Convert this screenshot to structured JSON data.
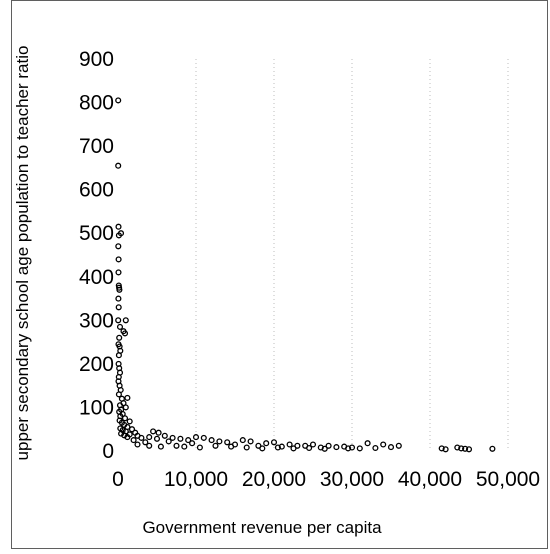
{
  "chart_data": {
    "type": "scatter",
    "title": "",
    "xlabel": "Government revenue per capita",
    "ylabel": "upper secondary school age population to teacher ratio",
    "xlim": [
      0,
      50000
    ],
    "ylim": [
      0,
      900
    ],
    "x_ticks": [
      0,
      10000,
      20000,
      30000,
      40000,
      50000
    ],
    "x_tick_labels": [
      "0",
      "10,000",
      "20,000",
      "30,000",
      "40,000",
      "50,000"
    ],
    "y_ticks": [
      0,
      100,
      200,
      300,
      400,
      500,
      600,
      700,
      800,
      900
    ],
    "y_tick_labels": [
      "0",
      "100",
      "200",
      "300",
      "400",
      "500",
      "600",
      "700",
      "800",
      "900"
    ],
    "grid": {
      "vertical": true,
      "horizontal": false,
      "style": "dotted"
    },
    "marker": {
      "shape": "open-circle",
      "color": "#000000"
    },
    "points": [
      [
        30,
        805
      ],
      [
        30,
        655
      ],
      [
        60,
        515
      ],
      [
        120,
        495
      ],
      [
        380,
        500
      ],
      [
        40,
        470
      ],
      [
        80,
        440
      ],
      [
        60,
        410
      ],
      [
        100,
        380
      ],
      [
        140,
        375
      ],
      [
        180,
        370
      ],
      [
        50,
        350
      ],
      [
        90,
        330
      ],
      [
        30,
        300
      ],
      [
        250,
        285
      ],
      [
        700,
        275
      ],
      [
        900,
        270
      ],
      [
        1000,
        300
      ],
      [
        150,
        260
      ],
      [
        60,
        245
      ],
      [
        200,
        240
      ],
      [
        300,
        230
      ],
      [
        120,
        220
      ],
      [
        80,
        200
      ],
      [
        150,
        190
      ],
      [
        250,
        180
      ],
      [
        100,
        170
      ],
      [
        60,
        160
      ],
      [
        200,
        150
      ],
      [
        350,
        140
      ],
      [
        120,
        130
      ],
      [
        500,
        120
      ],
      [
        1200,
        122
      ],
      [
        700,
        110
      ],
      [
        250,
        105
      ],
      [
        1000,
        100
      ],
      [
        400,
        95
      ],
      [
        150,
        90
      ],
      [
        600,
        85
      ],
      [
        300,
        80
      ],
      [
        900,
        75
      ],
      [
        200,
        70
      ],
      [
        1500,
        68
      ],
      [
        500,
        65
      ],
      [
        800,
        60
      ],
      [
        1200,
        55
      ],
      [
        300,
        52
      ],
      [
        1800,
        50
      ],
      [
        600,
        48
      ],
      [
        1000,
        45
      ],
      [
        2200,
        42
      ],
      [
        400,
        40
      ],
      [
        1500,
        38
      ],
      [
        800,
        36
      ],
      [
        2500,
        35
      ],
      [
        3000,
        30
      ],
      [
        1200,
        32
      ],
      [
        4000,
        32
      ],
      [
        5000,
        28
      ],
      [
        4500,
        45
      ],
      [
        5200,
        42
      ],
      [
        6000,
        35
      ],
      [
        7000,
        30
      ],
      [
        8000,
        28
      ],
      [
        9000,
        25
      ],
      [
        10000,
        32
      ],
      [
        11000,
        30
      ],
      [
        12000,
        25
      ],
      [
        13000,
        22
      ],
      [
        14000,
        20
      ],
      [
        16000,
        25
      ],
      [
        17000,
        22
      ],
      [
        19000,
        18
      ],
      [
        20000,
        20
      ],
      [
        22000,
        15
      ],
      [
        24000,
        12
      ],
      [
        25000,
        15
      ],
      [
        27000,
        12
      ],
      [
        29000,
        10
      ],
      [
        30000,
        8
      ],
      [
        32000,
        18
      ],
      [
        34000,
        15
      ],
      [
        36000,
        12
      ],
      [
        41500,
        6
      ],
      [
        43500,
        8
      ],
      [
        44500,
        5
      ],
      [
        48000,
        5
      ],
      [
        2000,
        25
      ],
      [
        3500,
        20
      ],
      [
        6500,
        22
      ],
      [
        9500,
        18
      ],
      [
        15000,
        15
      ],
      [
        18000,
        12
      ],
      [
        21000,
        10
      ],
      [
        23000,
        12
      ],
      [
        26000,
        8
      ],
      [
        28000,
        9
      ],
      [
        31000,
        6
      ],
      [
        33000,
        7
      ],
      [
        35000,
        9
      ],
      [
        42000,
        4
      ],
      [
        44000,
        6
      ],
      [
        45000,
        4
      ],
      [
        2500,
        15
      ],
      [
        4000,
        12
      ],
      [
        5500,
        10
      ],
      [
        7500,
        12
      ],
      [
        8500,
        10
      ],
      [
        10500,
        8
      ],
      [
        12500,
        12
      ],
      [
        14500,
        10
      ],
      [
        16500,
        8
      ],
      [
        18500,
        6
      ],
      [
        20500,
        8
      ],
      [
        22500,
        6
      ],
      [
        24500,
        7
      ],
      [
        26500,
        5
      ],
      [
        29500,
        6
      ]
    ]
  }
}
